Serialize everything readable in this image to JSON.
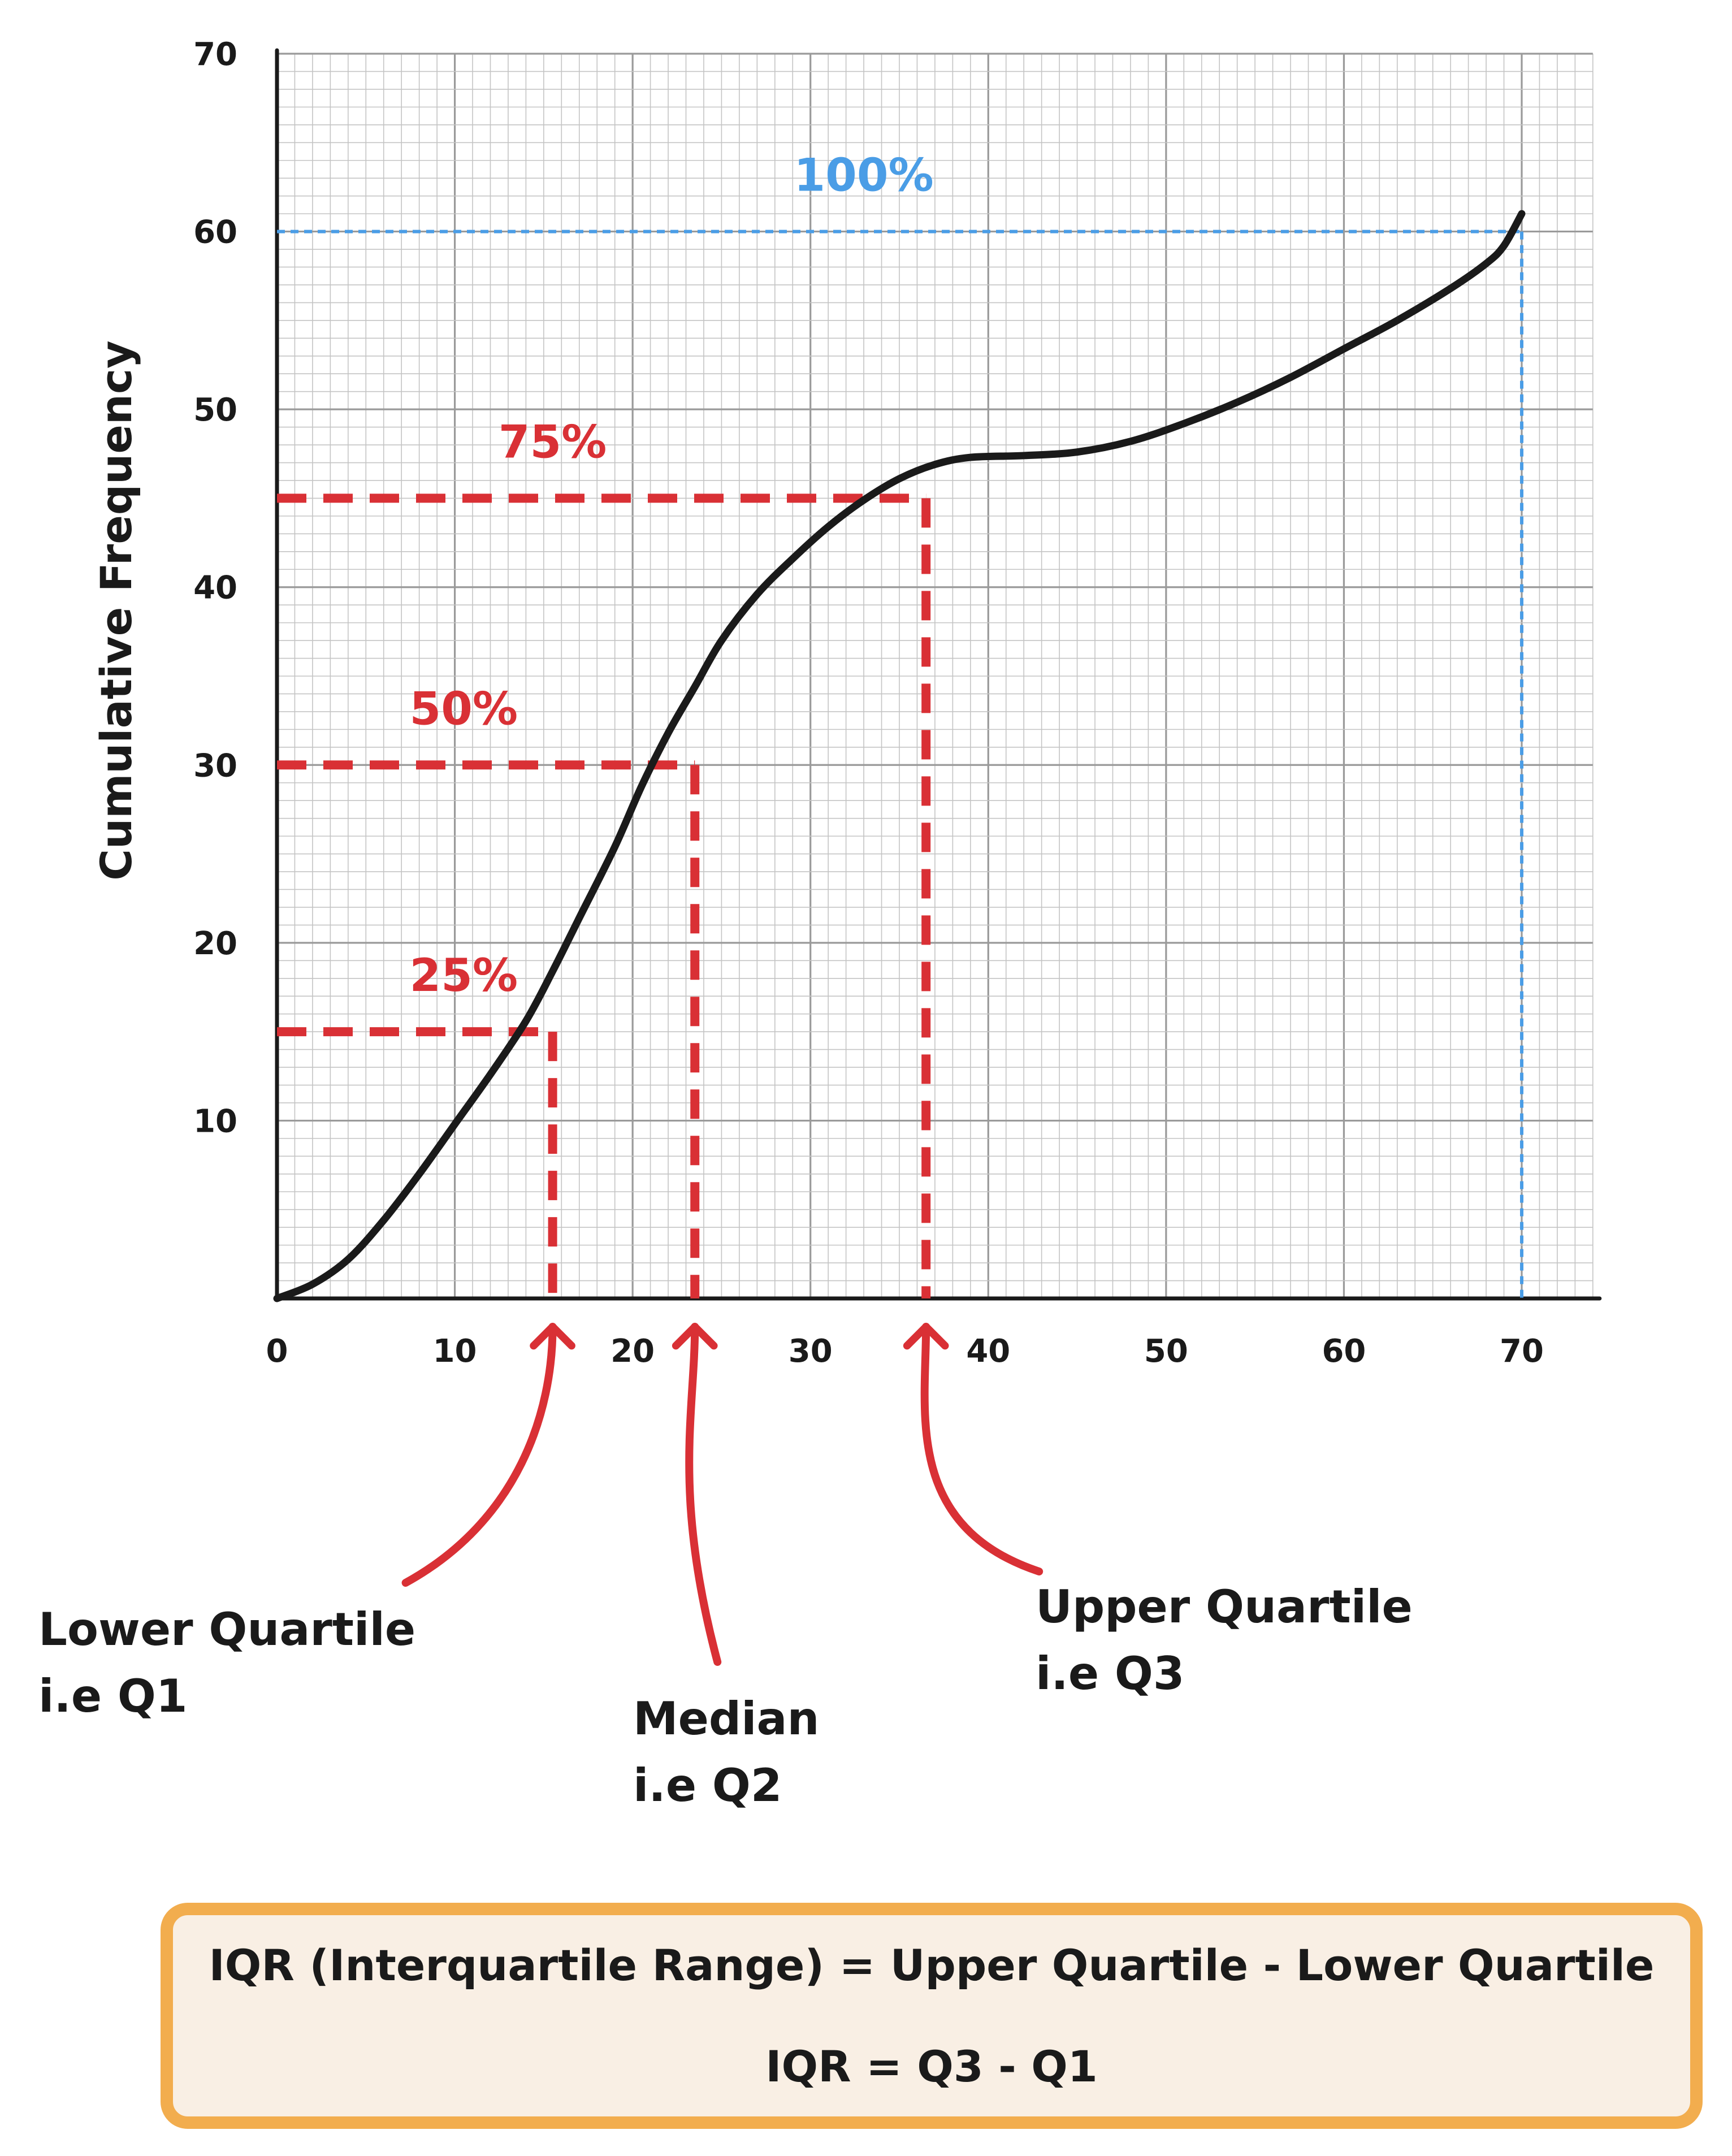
{
  "chart_data": {
    "type": "line",
    "title": "",
    "xlabel": "",
    "ylabel": "Cumulative Frequency",
    "xlim": [
      0,
      74
    ],
    "ylim": [
      0,
      70
    ],
    "grid": true,
    "x_ticks": [
      "0",
      "10",
      "20",
      "30",
      "40",
      "50",
      "60",
      "70"
    ],
    "y_ticks": [
      "10",
      "20",
      "30",
      "40",
      "50",
      "60",
      "70"
    ],
    "series": [
      {
        "x": [
          0,
          2,
          4,
          6,
          8,
          10,
          12,
          14,
          15.5,
          17,
          19,
          20.5,
          22,
          23.5,
          25,
          27,
          29,
          31,
          33,
          35,
          37,
          39,
          42,
          45,
          48,
          51,
          54,
          57,
          60,
          63,
          66,
          68,
          69,
          70
        ],
        "y": [
          0,
          0.8,
          2.2,
          4.4,
          7,
          9.8,
          12.6,
          15.6,
          18.4,
          21.4,
          25.4,
          28.8,
          31.8,
          34.4,
          37,
          39.6,
          41.6,
          43.4,
          44.9,
          46.1,
          46.9,
          47.3,
          47.4,
          47.6,
          48.2,
          49.2,
          50.4,
          51.8,
          53.4,
          55,
          56.8,
          58.2,
          59.2,
          61
        ]
      }
    ],
    "markers": [
      {
        "label": "25%",
        "y": 15,
        "x": 15.5,
        "color": "#d93035"
      },
      {
        "label": "50%",
        "y": 30,
        "x": 23.5,
        "color": "#d93035"
      },
      {
        "label": "75%",
        "y": 45,
        "x": 36.5,
        "color": "#d93035"
      },
      {
        "label": "100%",
        "y": 60,
        "x": 70,
        "color": "#4a9de6"
      }
    ],
    "annotations": [
      {
        "lines": [
          "Lower Quartile",
          "i.e Q1"
        ],
        "points_to_x": 15.5
      },
      {
        "lines": [
          "Median",
          "i.e Q2"
        ],
        "points_to_x": 23.5
      },
      {
        "lines": [
          "Upper Quartile",
          "i.e Q3"
        ],
        "points_to_x": 36.5
      }
    ]
  },
  "formula": {
    "line1": "IQR (Interquartile Range) = Upper Quartile - Lower Quartile",
    "line2": "IQR = Q3 - Q1"
  },
  "colors": {
    "curve": "#1a1a1a",
    "quartile": "#d93035",
    "total": "#4a9de6",
    "box_border": "#f2ad4e",
    "box_fill": "#f9efe4"
  }
}
